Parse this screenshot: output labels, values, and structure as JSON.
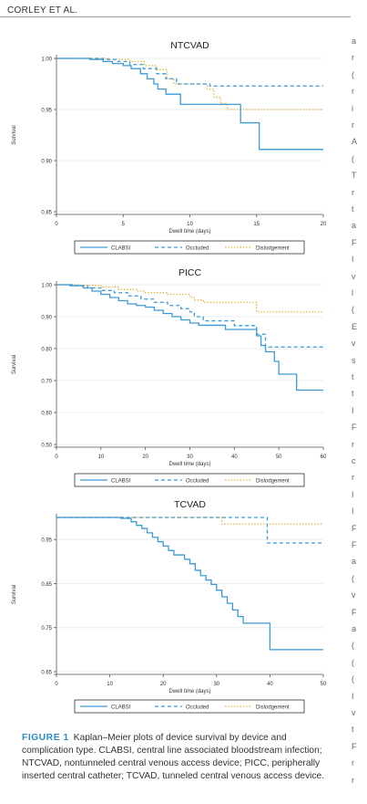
{
  "header": {
    "running_head": "CORLEY ET AL."
  },
  "legend_labels": [
    "CLABSI",
    "Occluded",
    "Dislodgement"
  ],
  "colors": {
    "clabsi": "#3c9ad6",
    "occluded": "#3c9ad6",
    "dislodgement": "#e3b540"
  },
  "chart_data": [
    {
      "type": "line",
      "title": "NTCVAD",
      "xlabel": "Dwell time (days)",
      "ylabel": "Survival",
      "xlim": [
        0,
        20
      ],
      "ylim": [
        0.85,
        1.0
      ],
      "xticks": [
        0,
        5,
        10,
        15,
        20
      ],
      "yticks": [
        0.85,
        0.9,
        0.95,
        1.0
      ],
      "ytick_labels": [
        "0.85",
        "0.90",
        "0.95",
        "1.00"
      ],
      "series": [
        {
          "name": "CLABSI",
          "step": [
            [
              0,
              1.0
            ],
            [
              2.5,
              0.999
            ],
            [
              3.5,
              0.997
            ],
            [
              4.2,
              0.995
            ],
            [
              5,
              0.993
            ],
            [
              5.6,
              0.99
            ],
            [
              6.3,
              0.985
            ],
            [
              6.8,
              0.98
            ],
            [
              7.3,
              0.975
            ],
            [
              7.6,
              0.97
            ],
            [
              8.2,
              0.965
            ],
            [
              9.3,
              0.955
            ],
            [
              12.4,
              0.955
            ],
            [
              13.8,
              0.937
            ],
            [
              14.8,
              0.937
            ],
            [
              15.2,
              0.911
            ],
            [
              20,
              0.911
            ]
          ]
        },
        {
          "name": "Occluded",
          "step": [
            [
              0,
              1.0
            ],
            [
              3.5,
              0.999
            ],
            [
              4.5,
              0.997
            ],
            [
              5.5,
              0.994
            ],
            [
              6.5,
              0.99
            ],
            [
              7.5,
              0.985
            ],
            [
              8.2,
              0.98
            ],
            [
              9,
              0.975
            ],
            [
              11.5,
              0.973
            ],
            [
              20,
              0.973
            ]
          ]
        },
        {
          "name": "Dislodgement",
          "step": [
            [
              0,
              1.0
            ],
            [
              4,
              0.999
            ],
            [
              5.5,
              0.997
            ],
            [
              6.6,
              0.993
            ],
            [
              7.5,
              0.989
            ],
            [
              8.3,
              0.98
            ],
            [
              8.8,
              0.975
            ],
            [
              11.3,
              0.97
            ],
            [
              11.8,
              0.962
            ],
            [
              12.3,
              0.956
            ],
            [
              12.8,
              0.95
            ],
            [
              20,
              0.95
            ]
          ]
        }
      ]
    },
    {
      "type": "line",
      "title": "PICC",
      "xlabel": "Dwell time (days)",
      "ylabel": "Survival",
      "xlim": [
        0,
        60
      ],
      "ylim": [
        0.5,
        1.0
      ],
      "xticks": [
        0,
        10,
        20,
        30,
        40,
        50,
        60
      ],
      "yticks": [
        0.5,
        0.6,
        0.7,
        0.8,
        0.9,
        1.0
      ],
      "ytick_labels": [
        "0.50",
        "0.60",
        "0.70",
        "0.80",
        "0.90",
        "1.00"
      ],
      "series": [
        {
          "name": "CLABSI",
          "step": [
            [
              0,
              1.0
            ],
            [
              3,
              0.997
            ],
            [
              6,
              0.99
            ],
            [
              8,
              0.98
            ],
            [
              10,
              0.97
            ],
            [
              12,
              0.96
            ],
            [
              14,
              0.95
            ],
            [
              16,
              0.94
            ],
            [
              18,
              0.935
            ],
            [
              20,
              0.93
            ],
            [
              22,
              0.92
            ],
            [
              24,
              0.91
            ],
            [
              26,
              0.9
            ],
            [
              28,
              0.89
            ],
            [
              30,
              0.88
            ],
            [
              32,
              0.873
            ],
            [
              37,
              0.873
            ],
            [
              38,
              0.86
            ],
            [
              44,
              0.86
            ],
            [
              45,
              0.84
            ],
            [
              46,
              0.81
            ],
            [
              47,
              0.79
            ],
            [
              49,
              0.76
            ],
            [
              50,
              0.72
            ],
            [
              53,
              0.72
            ],
            [
              54,
              0.67
            ],
            [
              60,
              0.67
            ]
          ]
        },
        {
          "name": "Occluded",
          "step": [
            [
              0,
              1.0
            ],
            [
              4,
              0.997
            ],
            [
              7,
              0.99
            ],
            [
              10,
              0.982
            ],
            [
              13,
              0.975
            ],
            [
              16,
              0.965
            ],
            [
              19,
              0.955
            ],
            [
              22,
              0.945
            ],
            [
              25,
              0.935
            ],
            [
              28,
              0.925
            ],
            [
              30,
              0.915
            ],
            [
              31,
              0.9
            ],
            [
              33,
              0.887
            ],
            [
              39,
              0.887
            ],
            [
              40,
              0.872
            ],
            [
              44,
              0.872
            ],
            [
              45,
              0.845
            ],
            [
              46,
              0.845
            ],
            [
              47,
              0.805
            ],
            [
              60,
              0.805
            ]
          ]
        },
        {
          "name": "Dislodgement",
          "step": [
            [
              0,
              1.0
            ],
            [
              5,
              0.998
            ],
            [
              10,
              0.993
            ],
            [
              14,
              0.985
            ],
            [
              18,
              0.98
            ],
            [
              20,
              0.975
            ],
            [
              25,
              0.97
            ],
            [
              30,
              0.96
            ],
            [
              31,
              0.952
            ],
            [
              33,
              0.945
            ],
            [
              44,
              0.945
            ],
            [
              45,
              0.915
            ],
            [
              60,
              0.915
            ]
          ]
        }
      ]
    },
    {
      "type": "line",
      "title": "TCVAD",
      "xlabel": "Dwell time (days)",
      "ylabel": "Survival",
      "xlim": [
        0,
        50
      ],
      "ylim": [
        0.65,
        1.0
      ],
      "xticks": [
        0,
        10,
        20,
        30,
        40,
        50
      ],
      "yticks": [
        0.65,
        0.75,
        0.85,
        0.95
      ],
      "ytick_labels": [
        "0.65",
        "0.75",
        "0.85",
        "0.95"
      ],
      "series": [
        {
          "name": "CLABSI",
          "step": [
            [
              0,
              1.0
            ],
            [
              12,
              0.998
            ],
            [
              14,
              0.99
            ],
            [
              15,
              0.982
            ],
            [
              16,
              0.975
            ],
            [
              17,
              0.965
            ],
            [
              18,
              0.955
            ],
            [
              19,
              0.945
            ],
            [
              20,
              0.935
            ],
            [
              21,
              0.925
            ],
            [
              22,
              0.915
            ],
            [
              24,
              0.905
            ],
            [
              25,
              0.895
            ],
            [
              26,
              0.88
            ],
            [
              27,
              0.868
            ],
            [
              28,
              0.858
            ],
            [
              29,
              0.848
            ],
            [
              30,
              0.835
            ],
            [
              31,
              0.82
            ],
            [
              32,
              0.805
            ],
            [
              33,
              0.79
            ],
            [
              34,
              0.775
            ],
            [
              35,
              0.76
            ],
            [
              39.5,
              0.76
            ],
            [
              40,
              0.7
            ],
            [
              50,
              0.7
            ]
          ]
        },
        {
          "name": "Occluded",
          "step": [
            [
              0,
              1.0
            ],
            [
              39,
              1.0
            ],
            [
              39.5,
              0.942
            ],
            [
              50,
              0.942
            ]
          ]
        },
        {
          "name": "Dislodgement",
          "step": [
            [
              0,
              1.0
            ],
            [
              30,
              1.0
            ],
            [
              31,
              0.985
            ],
            [
              50,
              0.985
            ]
          ]
        }
      ]
    }
  ],
  "caption": {
    "label": "FIGURE 1",
    "text": "Kaplan–Meier plots of device survival by device and complication type. CLABSI, central line associated bloodstream infection; NTCVAD, nontunneled central venous access device; PICC, peripherally inserted central catheter; TCVAD, tunneled central venous access device."
  },
  "right_column_letters": [
    "a",
    "r",
    "(",
    "r",
    "i",
    "r",
    "A",
    "(",
    "T",
    "r",
    "t",
    "a",
    "F",
    "I",
    "v",
    "l",
    "(",
    "E",
    "v",
    "s",
    "t",
    "t",
    "I",
    "F",
    "r",
    "c",
    "r",
    "I",
    "I",
    "F",
    "F",
    "a",
    "(",
    "v",
    "F",
    "a",
    "(",
    "(",
    "(",
    "I",
    "v",
    "t",
    "F",
    "r",
    "r"
  ]
}
